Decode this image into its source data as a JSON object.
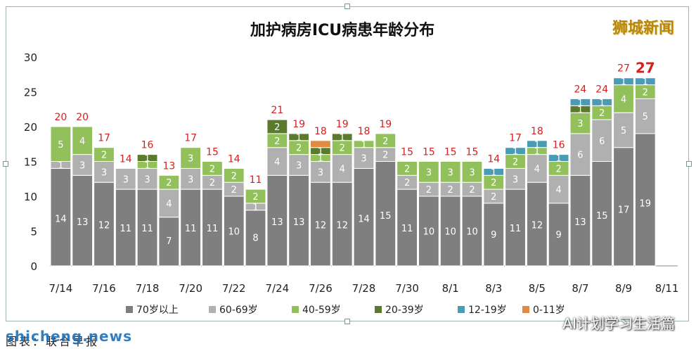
{
  "brand_logo": "狮城新闻",
  "watermark_left": "shicheng.news",
  "watermark_right": "AI计划学习生活篇",
  "caption": "图表：联合早报",
  "chart_data": {
    "type": "bar",
    "stacked": true,
    "title": "加护病房ICU病患年龄分布",
    "ylim": [
      0,
      30
    ],
    "yticks": [
      0,
      5,
      10,
      15,
      20,
      25,
      30
    ],
    "grid": false,
    "legend_position": "bottom",
    "x_tick_labels": [
      "7/14",
      "7/16",
      "7/18",
      "7/20",
      "7/22",
      "7/24",
      "7/26",
      "7/28",
      "7/30",
      "8/1",
      "8/3",
      "8/5",
      "8/7",
      "8/9",
      "8/11"
    ],
    "categories": [
      "7/14",
      "7/15",
      "7/16",
      "7/17",
      "7/18",
      "7/19",
      "7/20",
      "7/21",
      "7/22",
      "7/23",
      "7/24",
      "7/25",
      "7/26",
      "7/27",
      "7/28",
      "7/29",
      "7/30",
      "7/31",
      "8/1",
      "8/2",
      "8/3",
      "8/4",
      "8/5",
      "8/6",
      "8/7",
      "8/8",
      "8/9",
      "8/10",
      "8/11"
    ],
    "totals": [
      20,
      20,
      17,
      14,
      16,
      13,
      17,
      15,
      14,
      11,
      21,
      19,
      18,
      19,
      18,
      19,
      15,
      15,
      15,
      15,
      14,
      17,
      18,
      16,
      24,
      24,
      27,
      27,
      null
    ],
    "series": [
      {
        "name": "70岁以上",
        "color": "#7f7f7f",
        "values": [
          14,
          13,
          12,
          11,
          11,
          7,
          11,
          11,
          10,
          8,
          13,
          13,
          12,
          12,
          14,
          15,
          11,
          10,
          10,
          10,
          9,
          11,
          12,
          9,
          13,
          15,
          17,
          19,
          0
        ]
      },
      {
        "name": "60-69岁",
        "color": "#b0b0b0",
        "values": [
          1,
          3,
          3,
          3,
          3,
          4,
          3,
          2,
          2,
          1,
          4,
          3,
          3,
          4,
          3,
          2,
          2,
          2,
          2,
          2,
          2,
          3,
          4,
          4,
          6,
          6,
          5,
          5,
          0
        ]
      },
      {
        "name": "40-59岁",
        "color": "#92c05a",
        "values": [
          5,
          4,
          2,
          0,
          1,
          2,
          3,
          2,
          2,
          2,
          2,
          2,
          1,
          2,
          1,
          2,
          2,
          3,
          3,
          3,
          2,
          2,
          1,
          2,
          3,
          2,
          4,
          2,
          0
        ]
      },
      {
        "name": "20-39岁",
        "color": "#5b7a2e",
        "values": [
          0,
          0,
          0,
          0,
          1,
          0,
          0,
          0,
          0,
          0,
          2,
          1,
          1,
          1,
          0,
          0,
          0,
          0,
          0,
          0,
          0,
          0,
          0,
          0,
          1,
          0,
          0,
          0,
          0
        ]
      },
      {
        "name": "12-19岁",
        "color": "#4a9bb5",
        "values": [
          0,
          0,
          0,
          0,
          0,
          0,
          0,
          0,
          0,
          0,
          0,
          0,
          0,
          0,
          0,
          0,
          0,
          0,
          0,
          0,
          1,
          1,
          1,
          1,
          1,
          1,
          1,
          1,
          0
        ]
      },
      {
        "name": "0-11岁",
        "color": "#e08a44",
        "values": [
          0,
          0,
          0,
          0,
          0,
          0,
          0,
          0,
          0,
          0,
          0,
          0,
          1,
          0,
          0,
          0,
          0,
          0,
          0,
          0,
          0,
          0,
          0,
          0,
          0,
          0,
          0,
          0,
          0
        ]
      }
    ]
  }
}
